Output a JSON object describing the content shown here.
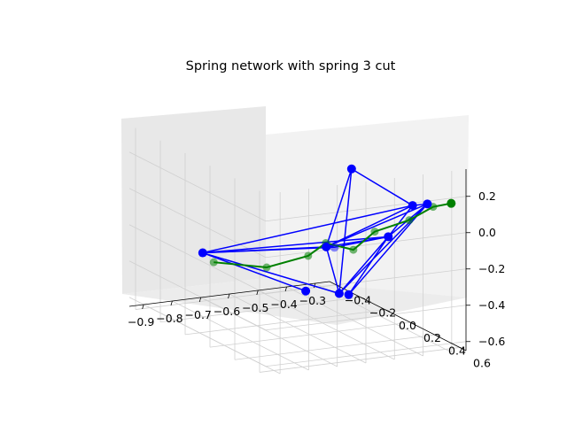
{
  "chart_data": {
    "type": "network3d",
    "title": "Spring network with spring 3 cut",
    "xlabel": "",
    "ylabel": "",
    "zlabel": "",
    "x_ticks": [
      "−0.9",
      "−0.8",
      "−0.7",
      "−0.6",
      "−0.5",
      "−0.4",
      "−0.3"
    ],
    "y_ticks": [
      "−0.4",
      "−0.2",
      "0.0",
      "0.2",
      "0.4",
      "0.6"
    ],
    "z_ticks": [
      "0.2",
      "0.0",
      "−0.2",
      "−0.4",
      "−0.6"
    ],
    "grid": true,
    "colors": {
      "springs": "#0000ff",
      "cut_spring": "#008000",
      "pane": "#f2f2f2",
      "grid": "#d0d0d0"
    },
    "series": [
      {
        "name": "",
        "nodes": [
          {
            "id": "A",
            "x": -0.52,
            "y": 0.35,
            "z": 0.3
          },
          {
            "id": "B",
            "x": -0.88,
            "y": -0.02,
            "z": -0.22
          },
          {
            "id": "C",
            "x": -0.58,
            "y": 0.35,
            "z": -0.12
          },
          {
            "id": "D",
            "x": -0.5,
            "y": 0.1,
            "z": -0.22
          },
          {
            "id": "E",
            "x": -0.35,
            "y": 0.45,
            "z": 0.1
          },
          {
            "id": "F",
            "x": -0.32,
            "y": 0.5,
            "z": 0.12
          },
          {
            "id": "G",
            "x": -0.37,
            "y": 0.3,
            "z": -0.12
          },
          {
            "id": "H",
            "x": -0.42,
            "y": 0.02,
            "z": -0.52
          },
          {
            "id": "I",
            "x": -0.4,
            "y": 0.05,
            "z": -0.52
          },
          {
            "id": "J",
            "x": -0.42,
            "y": -0.25,
            "z": -0.6
          }
        ],
        "springs": [
          [
            "A",
            "D"
          ],
          [
            "A",
            "H"
          ],
          [
            "A",
            "E"
          ],
          [
            "B",
            "D"
          ],
          [
            "B",
            "G"
          ],
          [
            "B",
            "C"
          ],
          [
            "B",
            "H"
          ],
          [
            "B",
            "J"
          ],
          [
            "B",
            "E"
          ],
          [
            "C",
            "G"
          ],
          [
            "C",
            "D"
          ],
          [
            "D",
            "E"
          ],
          [
            "D",
            "F"
          ],
          [
            "D",
            "H"
          ],
          [
            "D",
            "G"
          ],
          [
            "E",
            "F"
          ],
          [
            "E",
            "G"
          ],
          [
            "F",
            "H"
          ],
          [
            "F",
            "I"
          ],
          [
            "F",
            "G"
          ],
          [
            "G",
            "H"
          ],
          [
            "G",
            "I"
          ]
        ],
        "cut_spring": {
          "nodes": [
            {
              "x": -0.72,
              "y": -0.3,
              "z": -0.4
            },
            {
              "x": -0.6,
              "y": -0.15,
              "z": -0.4
            },
            {
              "x": -0.52,
              "y": 0.0,
              "z": -0.3
            },
            {
              "x": -0.48,
              "y": 0.05,
              "z": -0.22
            },
            {
              "x": -0.44,
              "y": 0.18,
              "z": -0.22
            },
            {
              "x": -0.4,
              "y": 0.26,
              "z": -0.1
            },
            {
              "x": -0.34,
              "y": 0.4,
              "z": 0.0
            },
            {
              "x": -0.3,
              "y": 0.5,
              "z": 0.1
            },
            {
              "x": -0.28,
              "y": 0.6,
              "z": 0.15
            }
          ]
        }
      }
    ]
  }
}
